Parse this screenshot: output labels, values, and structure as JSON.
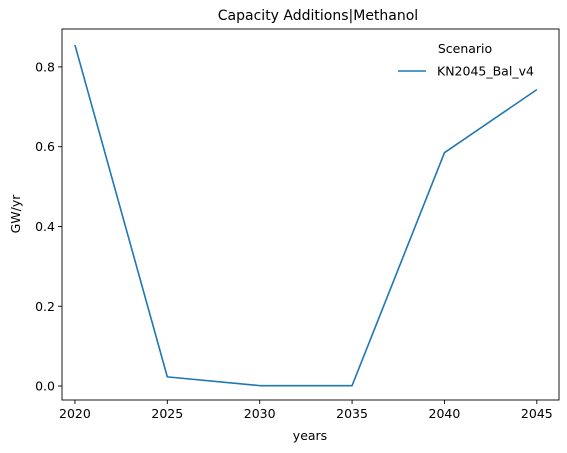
{
  "chart_data": {
    "type": "line",
    "title": "Capacity Additions|Methanol",
    "xlabel": "years",
    "ylabel": "GW/yr",
    "x": [
      2020,
      2025,
      2030,
      2035,
      2040,
      2045
    ],
    "xlim": [
      2019.3,
      2046.2
    ],
    "ylim": [
      -0.035,
      0.895
    ],
    "xticks": [
      2020,
      2025,
      2030,
      2035,
      2040,
      2045
    ],
    "yticks": [
      0.0,
      0.2,
      0.4,
      0.6,
      0.8
    ],
    "ytick_labels": [
      "0.0",
      "0.2",
      "0.4",
      "0.6",
      "0.8"
    ],
    "grid": false,
    "legend": {
      "title": "Scenario",
      "placement": "top-right"
    },
    "series": [
      {
        "name": "KN2045_Bal_v4",
        "color": "#1f77b4",
        "values": [
          0.855,
          0.023,
          0.001,
          0.001,
          0.585,
          0.743
        ]
      }
    ]
  }
}
